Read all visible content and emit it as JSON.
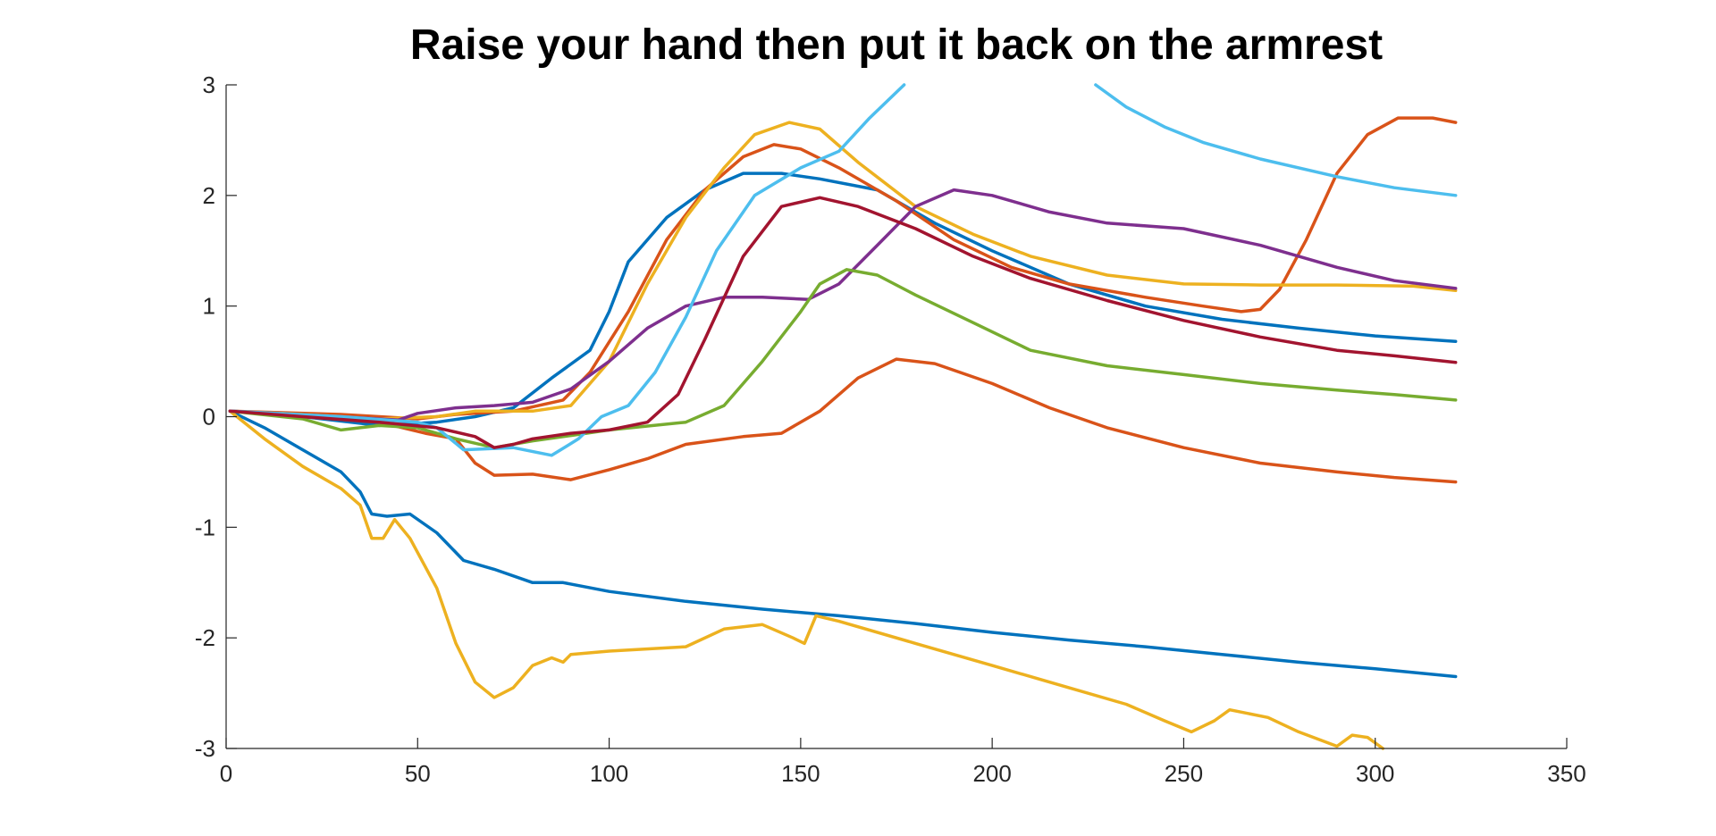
{
  "chart_data": {
    "type": "line",
    "title": "Raise your hand then put it back on the armrest",
    "xlabel": "",
    "ylabel": "",
    "xlim": [
      0,
      350
    ],
    "ylim": [
      -3,
      3
    ],
    "xticks": [
      0,
      50,
      100,
      150,
      200,
      250,
      300,
      350
    ],
    "yticks": [
      -3,
      -2,
      -1,
      0,
      1,
      2,
      3
    ],
    "xtick_labels": [
      "0",
      "50",
      "100",
      "150",
      "200",
      "250",
      "300",
      "350"
    ],
    "ytick_labels": [
      "-3",
      "-2",
      "-1",
      "0",
      "1",
      "2",
      "3"
    ],
    "grid": false,
    "legend": "none",
    "series": [
      {
        "color": "#0072BD",
        "points": [
          [
            1,
            0.05
          ],
          [
            20,
            0.0
          ],
          [
            40,
            -0.08
          ],
          [
            55,
            -0.05
          ],
          [
            65,
            0.0
          ],
          [
            75,
            0.08
          ],
          [
            85,
            0.35
          ],
          [
            95,
            0.6
          ],
          [
            100,
            0.95
          ],
          [
            105,
            1.4
          ],
          [
            115,
            1.8
          ],
          [
            125,
            2.05
          ],
          [
            135,
            2.2
          ],
          [
            145,
            2.2
          ],
          [
            155,
            2.15
          ],
          [
            170,
            2.05
          ],
          [
            185,
            1.75
          ],
          [
            200,
            1.5
          ],
          [
            220,
            1.2
          ],
          [
            240,
            1.0
          ],
          [
            260,
            0.88
          ],
          [
            280,
            0.8
          ],
          [
            300,
            0.73
          ],
          [
            321,
            0.68
          ]
        ]
      },
      {
        "color": "#0072BD",
        "points": [
          [
            1,
            0.05
          ],
          [
            10,
            -0.1
          ],
          [
            20,
            -0.3
          ],
          [
            30,
            -0.5
          ],
          [
            35,
            -0.68
          ],
          [
            38,
            -0.88
          ],
          [
            42,
            -0.9
          ],
          [
            48,
            -0.88
          ],
          [
            55,
            -1.05
          ],
          [
            62,
            -1.3
          ],
          [
            70,
            -1.38
          ],
          [
            80,
            -1.5
          ],
          [
            88,
            -1.5
          ],
          [
            100,
            -1.58
          ],
          [
            120,
            -1.67
          ],
          [
            140,
            -1.74
          ],
          [
            160,
            -1.8
          ],
          [
            180,
            -1.87
          ],
          [
            200,
            -1.95
          ],
          [
            220,
            -2.02
          ],
          [
            240,
            -2.08
          ],
          [
            260,
            -2.15
          ],
          [
            280,
            -2.22
          ],
          [
            300,
            -2.28
          ],
          [
            321,
            -2.35
          ]
        ]
      },
      {
        "color": "#D95319",
        "points": [
          [
            1,
            0.05
          ],
          [
            30,
            0.02
          ],
          [
            50,
            -0.02
          ],
          [
            60,
            0.02
          ],
          [
            75,
            0.05
          ],
          [
            88,
            0.15
          ],
          [
            95,
            0.4
          ],
          [
            105,
            0.95
          ],
          [
            115,
            1.6
          ],
          [
            125,
            2.05
          ],
          [
            135,
            2.35
          ],
          [
            143,
            2.46
          ],
          [
            150,
            2.42
          ],
          [
            160,
            2.25
          ],
          [
            175,
            1.95
          ],
          [
            190,
            1.6
          ],
          [
            205,
            1.35
          ],
          [
            220,
            1.2
          ],
          [
            240,
            1.08
          ],
          [
            255,
            1.0
          ],
          [
            265,
            0.95
          ],
          [
            270,
            0.97
          ],
          [
            275,
            1.15
          ],
          [
            282,
            1.6
          ],
          [
            290,
            2.2
          ],
          [
            298,
            2.55
          ],
          [
            306,
            2.7
          ],
          [
            315,
            2.7
          ],
          [
            321,
            2.66
          ]
        ]
      },
      {
        "color": "#D95319",
        "points": [
          [
            1,
            0.05
          ],
          [
            20,
            0.0
          ],
          [
            40,
            -0.05
          ],
          [
            52,
            -0.15
          ],
          [
            60,
            -0.2
          ],
          [
            65,
            -0.42
          ],
          [
            70,
            -0.53
          ],
          [
            80,
            -0.52
          ],
          [
            90,
            -0.57
          ],
          [
            100,
            -0.48
          ],
          [
            110,
            -0.38
          ],
          [
            120,
            -0.25
          ],
          [
            135,
            -0.18
          ],
          [
            145,
            -0.15
          ],
          [
            155,
            0.05
          ],
          [
            165,
            0.35
          ],
          [
            175,
            0.52
          ],
          [
            185,
            0.48
          ],
          [
            200,
            0.3
          ],
          [
            215,
            0.08
          ],
          [
            230,
            -0.1
          ],
          [
            250,
            -0.28
          ],
          [
            270,
            -0.42
          ],
          [
            290,
            -0.5
          ],
          [
            305,
            -0.55
          ],
          [
            321,
            -0.59
          ]
        ]
      },
      {
        "color": "#EDB120",
        "points": [
          [
            1,
            0.05
          ],
          [
            20,
            0.02
          ],
          [
            40,
            -0.02
          ],
          [
            55,
            0.0
          ],
          [
            65,
            0.05
          ],
          [
            80,
            0.05
          ],
          [
            90,
            0.1
          ],
          [
            100,
            0.5
          ],
          [
            110,
            1.2
          ],
          [
            120,
            1.8
          ],
          [
            130,
            2.25
          ],
          [
            138,
            2.55
          ],
          [
            147,
            2.66
          ],
          [
            155,
            2.6
          ],
          [
            165,
            2.3
          ],
          [
            180,
            1.9
          ],
          [
            195,
            1.65
          ],
          [
            210,
            1.45
          ],
          [
            230,
            1.28
          ],
          [
            250,
            1.2
          ],
          [
            270,
            1.19
          ],
          [
            290,
            1.19
          ],
          [
            310,
            1.18
          ],
          [
            321,
            1.14
          ]
        ]
      },
      {
        "color": "#EDB120",
        "points": [
          [
            1,
            0.05
          ],
          [
            10,
            -0.2
          ],
          [
            20,
            -0.45
          ],
          [
            30,
            -0.65
          ],
          [
            35,
            -0.8
          ],
          [
            38,
            -1.1
          ],
          [
            41,
            -1.1
          ],
          [
            44,
            -0.93
          ],
          [
            48,
            -1.1
          ],
          [
            55,
            -1.55
          ],
          [
            60,
            -2.05
          ],
          [
            65,
            -2.4
          ],
          [
            70,
            -2.54
          ],
          [
            75,
            -2.45
          ],
          [
            80,
            -2.25
          ],
          [
            85,
            -2.18
          ],
          [
            88,
            -2.22
          ],
          [
            90,
            -2.15
          ],
          [
            100,
            -2.12
          ],
          [
            120,
            -2.08
          ],
          [
            130,
            -1.92
          ],
          [
            140,
            -1.88
          ],
          [
            148,
            -2.0
          ],
          [
            151,
            -2.05
          ],
          [
            154,
            -1.8
          ],
          [
            160,
            -1.85
          ],
          [
            180,
            -2.05
          ],
          [
            200,
            -2.25
          ],
          [
            220,
            -2.45
          ],
          [
            235,
            -2.6
          ],
          [
            245,
            -2.75
          ],
          [
            252,
            -2.85
          ],
          [
            258,
            -2.75
          ],
          [
            262,
            -2.65
          ],
          [
            272,
            -2.72
          ],
          [
            280,
            -2.85
          ],
          [
            290,
            -2.98
          ],
          [
            294,
            -2.88
          ],
          [
            298,
            -2.9
          ],
          [
            302,
            -3.0
          ]
        ]
      },
      {
        "color": "#7E2F8E",
        "points": [
          [
            1,
            0.05
          ],
          [
            30,
            0.0
          ],
          [
            45,
            -0.03
          ],
          [
            50,
            0.03
          ],
          [
            60,
            0.08
          ],
          [
            70,
            0.1
          ],
          [
            80,
            0.13
          ],
          [
            90,
            0.25
          ],
          [
            100,
            0.5
          ],
          [
            110,
            0.8
          ],
          [
            120,
            1.0
          ],
          [
            130,
            1.08
          ],
          [
            140,
            1.08
          ],
          [
            152,
            1.06
          ],
          [
            160,
            1.2
          ],
          [
            170,
            1.55
          ],
          [
            180,
            1.9
          ],
          [
            190,
            2.05
          ],
          [
            200,
            2.0
          ],
          [
            215,
            1.85
          ],
          [
            230,
            1.75
          ],
          [
            250,
            1.7
          ],
          [
            270,
            1.55
          ],
          [
            290,
            1.35
          ],
          [
            305,
            1.23
          ],
          [
            321,
            1.16
          ]
        ]
      },
      {
        "color": "#77AC30",
        "points": [
          [
            1,
            0.05
          ],
          [
            20,
            -0.02
          ],
          [
            30,
            -0.12
          ],
          [
            40,
            -0.08
          ],
          [
            50,
            -0.1
          ],
          [
            60,
            -0.2
          ],
          [
            70,
            -0.28
          ],
          [
            80,
            -0.22
          ],
          [
            90,
            -0.17
          ],
          [
            100,
            -0.12
          ],
          [
            120,
            -0.05
          ],
          [
            130,
            0.1
          ],
          [
            140,
            0.5
          ],
          [
            150,
            0.95
          ],
          [
            155,
            1.2
          ],
          [
            162,
            1.33
          ],
          [
            170,
            1.28
          ],
          [
            180,
            1.1
          ],
          [
            195,
            0.85
          ],
          [
            210,
            0.6
          ],
          [
            230,
            0.46
          ],
          [
            250,
            0.38
          ],
          [
            270,
            0.3
          ],
          [
            290,
            0.24
          ],
          [
            305,
            0.2
          ],
          [
            321,
            0.15
          ]
        ]
      },
      {
        "color": "#4DBEEE",
        "points": [
          [
            1,
            0.05
          ],
          [
            30,
            0.0
          ],
          [
            50,
            -0.05
          ],
          [
            55,
            -0.1
          ],
          [
            62,
            -0.3
          ],
          [
            75,
            -0.28
          ],
          [
            85,
            -0.35
          ],
          [
            92,
            -0.2
          ],
          [
            98,
            0.0
          ],
          [
            105,
            0.1
          ],
          [
            112,
            0.4
          ],
          [
            120,
            0.9
          ],
          [
            128,
            1.5
          ],
          [
            138,
            2.0
          ],
          [
            150,
            2.25
          ],
          [
            160,
            2.4
          ],
          [
            168,
            2.7
          ],
          [
            177,
            3.0
          ]
        ]
      },
      {
        "color": "#4DBEEE",
        "points": [
          [
            227,
            3.0
          ],
          [
            235,
            2.8
          ],
          [
            245,
            2.62
          ],
          [
            255,
            2.48
          ],
          [
            270,
            2.33
          ],
          [
            290,
            2.17
          ],
          [
            305,
            2.07
          ],
          [
            321,
            2.0
          ]
        ]
      },
      {
        "color": "#A2142F",
        "points": [
          [
            1,
            0.05
          ],
          [
            20,
            0.0
          ],
          [
            40,
            -0.05
          ],
          [
            55,
            -0.1
          ],
          [
            65,
            -0.18
          ],
          [
            70,
            -0.28
          ],
          [
            75,
            -0.25
          ],
          [
            80,
            -0.2
          ],
          [
            90,
            -0.15
          ],
          [
            100,
            -0.12
          ],
          [
            110,
            -0.05
          ],
          [
            118,
            0.2
          ],
          [
            125,
            0.7
          ],
          [
            135,
            1.45
          ],
          [
            145,
            1.9
          ],
          [
            155,
            1.98
          ],
          [
            165,
            1.9
          ],
          [
            180,
            1.7
          ],
          [
            195,
            1.45
          ],
          [
            210,
            1.25
          ],
          [
            230,
            1.05
          ],
          [
            250,
            0.87
          ],
          [
            270,
            0.72
          ],
          [
            290,
            0.6
          ],
          [
            305,
            0.55
          ],
          [
            321,
            0.49
          ]
        ]
      }
    ]
  }
}
